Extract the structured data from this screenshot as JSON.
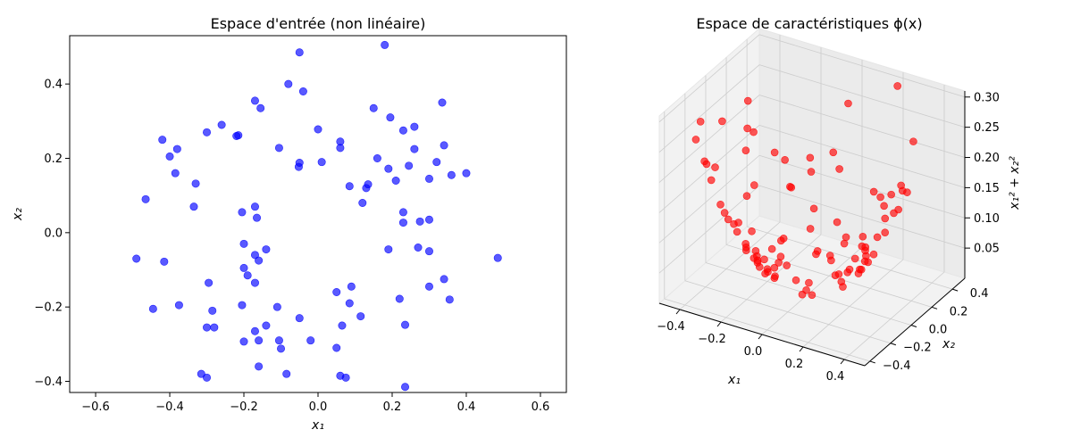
{
  "chart_data": [
    {
      "type": "scatter",
      "title": "Espace d'entrée (non linéaire)",
      "xlabel": "x₁",
      "ylabel": "x₂",
      "xlim": [
        -0.67,
        0.67
      ],
      "ylim": [
        -0.43,
        0.53
      ],
      "xticks": [
        "−0.6",
        "−0.4",
        "−0.2",
        "0.0",
        "0.2",
        "0.4",
        "0.6"
      ],
      "yticks": [
        "−0.4",
        "−0.2",
        "0.0",
        "0.2",
        "0.4"
      ],
      "grid": false,
      "color": "#0000ff",
      "series": [
        {
          "points": [
            [
              0.18,
              0.505
            ],
            [
              -0.05,
              0.485
            ],
            [
              -0.08,
              0.4
            ],
            [
              -0.04,
              0.38
            ],
            [
              -0.17,
              0.355
            ],
            [
              -0.155,
              0.335
            ],
            [
              0.15,
              0.335
            ],
            [
              0.195,
              0.31
            ],
            [
              0.26,
              0.285
            ],
            [
              0.335,
              0.35
            ],
            [
              -0.26,
              0.29
            ],
            [
              -0.3,
              0.27
            ],
            [
              0.0,
              0.278
            ],
            [
              0.23,
              0.275
            ],
            [
              -0.22,
              0.26
            ],
            [
              -0.215,
              0.262
            ],
            [
              -0.42,
              0.25
            ],
            [
              -0.38,
              0.225
            ],
            [
              0.06,
              0.245
            ],
            [
              0.06,
              0.228
            ],
            [
              -0.105,
              0.228
            ],
            [
              0.34,
              0.235
            ],
            [
              0.26,
              0.225
            ],
            [
              -0.4,
              0.205
            ],
            [
              0.16,
              0.2
            ],
            [
              0.32,
              0.19
            ],
            [
              0.245,
              0.18
            ],
            [
              0.01,
              0.19
            ],
            [
              -0.05,
              0.188
            ],
            [
              -0.052,
              0.177
            ],
            [
              0.19,
              0.172
            ],
            [
              -0.385,
              0.16
            ],
            [
              0.4,
              0.16
            ],
            [
              0.36,
              0.155
            ],
            [
              0.3,
              0.145
            ],
            [
              0.21,
              0.14
            ],
            [
              -0.33,
              0.132
            ],
            [
              0.085,
              0.125
            ],
            [
              0.135,
              0.13
            ],
            [
              0.13,
              0.12
            ],
            [
              -0.465,
              0.09
            ],
            [
              0.12,
              0.08
            ],
            [
              -0.17,
              0.07
            ],
            [
              -0.335,
              0.07
            ],
            [
              -0.205,
              0.055
            ],
            [
              0.23,
              0.055
            ],
            [
              -0.165,
              0.04
            ],
            [
              0.3,
              0.035
            ],
            [
              0.275,
              0.03
            ],
            [
              0.23,
              0.027
            ],
            [
              -0.2,
              -0.03
            ],
            [
              -0.14,
              -0.045
            ],
            [
              0.19,
              -0.045
            ],
            [
              0.27,
              -0.04
            ],
            [
              0.3,
              -0.05
            ],
            [
              -0.17,
              -0.06
            ],
            [
              -0.16,
              -0.075
            ],
            [
              0.485,
              -0.068
            ],
            [
              -0.49,
              -0.07
            ],
            [
              -0.415,
              -0.078
            ],
            [
              -0.2,
              -0.095
            ],
            [
              -0.19,
              -0.115
            ],
            [
              0.34,
              -0.125
            ],
            [
              -0.295,
              -0.135
            ],
            [
              -0.17,
              -0.135
            ],
            [
              0.3,
              -0.145
            ],
            [
              0.09,
              -0.145
            ],
            [
              0.05,
              -0.16
            ],
            [
              0.22,
              -0.178
            ],
            [
              0.355,
              -0.18
            ],
            [
              -0.375,
              -0.195
            ],
            [
              -0.11,
              -0.2
            ],
            [
              -0.205,
              -0.195
            ],
            [
              0.085,
              -0.19
            ],
            [
              -0.285,
              -0.21
            ],
            [
              -0.445,
              -0.205
            ],
            [
              0.115,
              -0.225
            ],
            [
              -0.05,
              -0.23
            ],
            [
              -0.14,
              -0.25
            ],
            [
              0.065,
              -0.25
            ],
            [
              0.235,
              -0.248
            ],
            [
              -0.3,
              -0.255
            ],
            [
              -0.28,
              -0.255
            ],
            [
              -0.17,
              -0.265
            ],
            [
              -0.105,
              -0.29
            ],
            [
              -0.2,
              -0.293
            ],
            [
              -0.16,
              -0.29
            ],
            [
              -0.02,
              -0.29
            ],
            [
              0.05,
              -0.31
            ],
            [
              -0.1,
              -0.312
            ],
            [
              -0.16,
              -0.36
            ],
            [
              -0.315,
              -0.38
            ],
            [
              -0.3,
              -0.39
            ],
            [
              -0.085,
              -0.38
            ],
            [
              0.06,
              -0.385
            ],
            [
              0.075,
              -0.39
            ],
            [
              0.235,
              -0.415
            ]
          ]
        }
      ]
    },
    {
      "type": "scatter",
      "title": "Espace de caractéristiques ϕ(x)",
      "xlabel": "x₁",
      "ylabel": "x₂",
      "zlabel": "x₁² + x₂²",
      "xlim": [
        -0.5,
        0.5
      ],
      "ylim": [
        -0.45,
        0.52
      ],
      "zlim": [
        0.0,
        0.31
      ],
      "xticks": [
        "−0.4",
        "−0.2",
        "0.0",
        "0.2",
        "0.4"
      ],
      "yticks": [
        "−0.4",
        "−0.2",
        "0.0",
        "0.2",
        "0.4"
      ],
      "zticks": [
        "0.05",
        "0.10",
        "0.15",
        "0.20",
        "0.25",
        "0.30"
      ],
      "grid": true,
      "color": "#ff0000",
      "series": [
        {
          "points_from": "same (x₁, x₂) as input space; z = x₁² + x₂²"
        }
      ]
    }
  ]
}
